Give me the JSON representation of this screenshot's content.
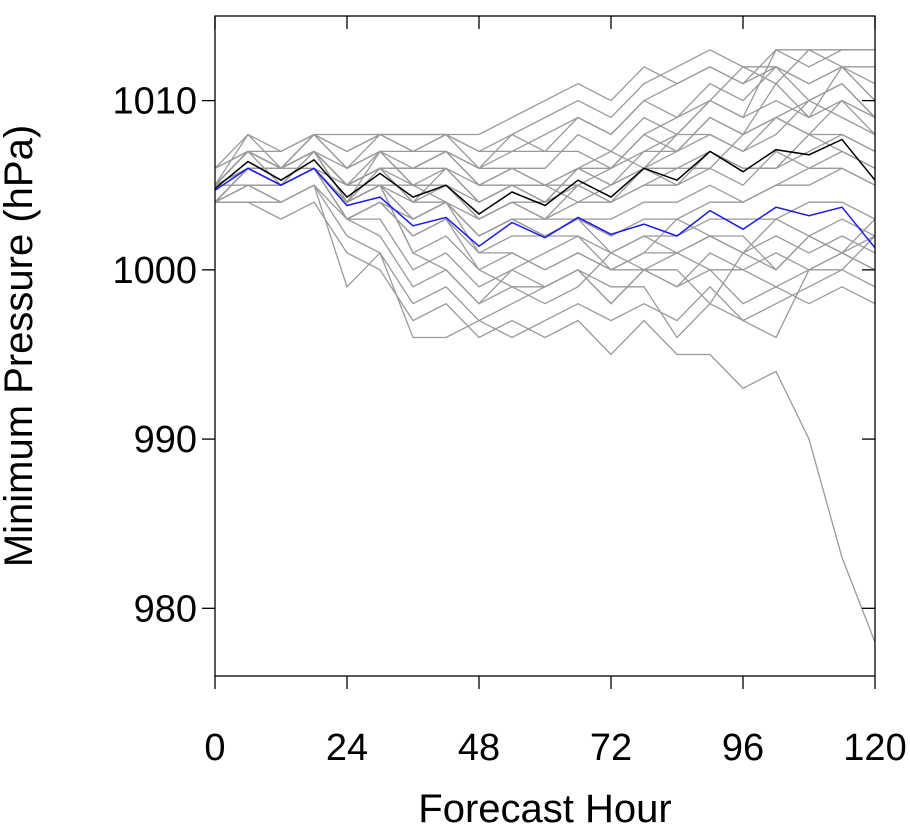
{
  "chart_data": {
    "type": "line",
    "title": "",
    "xlabel": "Forecast Hour",
    "ylabel": "Minimum Pressure (hPa)",
    "xlim": [
      0,
      120
    ],
    "ylim": [
      976,
      1015
    ],
    "xticks": [
      0,
      24,
      48,
      72,
      96,
      120
    ],
    "xtick_labels": [
      "0",
      "24",
      "48",
      "72",
      "96",
      "120"
    ],
    "yticks": [
      980,
      990,
      1000,
      1010
    ],
    "ytick_labels": [
      "980",
      "990",
      "1000",
      "1010"
    ],
    "grid": false,
    "legend": "none",
    "colors": {
      "ensemble": "#999999",
      "highlight_black": "#000000",
      "highlight_blue": "#1a1ae6"
    },
    "x": [
      0,
      6,
      12,
      18,
      24,
      30,
      36,
      42,
      48,
      54,
      60,
      66,
      72,
      78,
      84,
      90,
      96,
      102,
      108,
      114,
      120
    ],
    "series": [
      {
        "role": "ensemble",
        "values": [
          1005,
          1007,
          1006,
          1007,
          1005,
          1006,
          1004,
          1005,
          1003,
          1004,
          1004,
          1005,
          1004,
          1006,
          1007,
          1009,
          1008,
          1011,
          1013,
          1012,
          1011
        ]
      },
      {
        "role": "ensemble",
        "values": [
          1005,
          1007,
          1005,
          1007,
          1004,
          1007,
          1005,
          1006,
          1004,
          1005,
          1004,
          1006,
          1005,
          1007,
          1008,
          1010,
          1009,
          1013,
          1012,
          1013,
          1013
        ]
      },
      {
        "role": "ensemble",
        "values": [
          1004,
          1006,
          1005,
          1006,
          1003,
          1004,
          1003,
          1004,
          1002,
          1003,
          1003,
          1005,
          1006,
          1008,
          1009,
          1010,
          1012,
          1011,
          1009,
          1012,
          1010
        ]
      },
      {
        "role": "ensemble",
        "values": [
          1005,
          1008,
          1006,
          1008,
          1006,
          1008,
          1007,
          1008,
          1006,
          1008,
          1007,
          1009,
          1008,
          1010,
          1011,
          1012,
          1011,
          1012,
          1010,
          1011,
          1009
        ]
      },
      {
        "role": "ensemble",
        "values": [
          1006,
          1007,
          1006,
          1008,
          1006,
          1007,
          1006,
          1007,
          1005,
          1006,
          1006,
          1008,
          1007,
          1009,
          1008,
          1010,
          1009,
          1010,
          1009,
          1010,
          1008
        ]
      },
      {
        "role": "ensemble",
        "values": [
          1005,
          1006,
          1005,
          1007,
          1005,
          1006,
          1006,
          1007,
          1006,
          1007,
          1008,
          1009,
          1008,
          1010,
          1009,
          1011,
          1010,
          1012,
          1011,
          1012,
          1010
        ]
      },
      {
        "role": "ensemble",
        "values": [
          1005,
          1007,
          1006,
          1007,
          1004,
          1005,
          1004,
          1006,
          1005,
          1006,
          1005,
          1006,
          1006,
          1007,
          1007,
          1008,
          1007,
          1009,
          1008,
          1008,
          1007
        ]
      },
      {
        "role": "ensemble",
        "values": [
          1004,
          1006,
          1005,
          1006,
          1004,
          1005,
          1003,
          1004,
          1003,
          1004,
          1003,
          1004,
          1004,
          1005,
          1005,
          1006,
          1005,
          1007,
          1006,
          1007,
          1006
        ]
      },
      {
        "role": "ensemble",
        "values": [
          1005,
          1006,
          1005,
          1006,
          1003,
          1004,
          1002,
          1003,
          1001,
          1002,
          1002,
          1003,
          1002,
          1003,
          1003,
          1004,
          1004,
          1005,
          1005,
          1006,
          1005
        ]
      },
      {
        "role": "ensemble",
        "values": [
          1004,
          1006,
          1005,
          1006,
          1004,
          1005,
          1003,
          1004,
          1002,
          1003,
          1002,
          1003,
          1001,
          1002,
          1001,
          1002,
          1001,
          1003,
          1002,
          1003,
          1002
        ]
      },
      {
        "role": "ensemble",
        "values": [
          1005,
          1006,
          1005,
          1006,
          1003,
          1004,
          1002,
          1003,
          1000,
          1001,
          1000,
          1001,
          1000,
          1001,
          1001,
          1002,
          1001,
          1002,
          1001,
          1002,
          1001
        ]
      },
      {
        "role": "ensemble",
        "values": [
          1004,
          1005,
          1005,
          1006,
          1003,
          1003,
          1000,
          1001,
          999,
          1000,
          999,
          1000,
          998,
          1000,
          999,
          1001,
          1000,
          1001,
          1000,
          1001,
          1000
        ]
      },
      {
        "role": "ensemble",
        "values": [
          1004,
          1005,
          1004,
          1005,
          1003,
          1002,
          999,
          1000,
          998,
          999,
          998,
          999,
          1001,
          1000,
          999,
          1000,
          998,
          999,
          1000,
          1001,
          1000
        ]
      },
      {
        "role": "ensemble",
        "values": [
          1004,
          1004,
          1004,
          1005,
          1002,
          1001,
          998,
          999,
          997,
          998,
          999,
          1000,
          998,
          1000,
          1001,
          1000,
          1000,
          999,
          998,
          999,
          998
        ]
      },
      {
        "role": "ensemble",
        "values": [
          1004,
          1004,
          1003,
          1004,
          1001,
          1000,
          997,
          998,
          996,
          997,
          996,
          997,
          995,
          997,
          995,
          995,
          993,
          994,
          990,
          983,
          978
        ]
      },
      {
        "role": "ensemble",
        "values": [
          1004,
          1005,
          1004,
          1005,
          999,
          1001,
          996,
          996,
          997,
          996,
          997,
          998,
          997,
          998,
          997,
          999,
          997,
          998,
          999,
          1000,
          999
        ]
      },
      {
        "role": "ensemble",
        "values": [
          1005,
          1007,
          1006,
          1008,
          1007,
          1008,
          1008,
          1008,
          1008,
          1009,
          1010,
          1011,
          1010,
          1012,
          1011,
          1012,
          1011,
          1013,
          1013,
          1013,
          1013
        ]
      },
      {
        "role": "ensemble",
        "values": [
          1006,
          1008,
          1007,
          1008,
          1008,
          1008,
          1007,
          1008,
          1007,
          1008,
          1009,
          1010,
          1009,
          1011,
          1012,
          1013,
          1012,
          1012,
          1011,
          1012,
          1012
        ]
      },
      {
        "role": "ensemble",
        "values": [
          1005,
          1007,
          1007,
          1008,
          1007,
          1008,
          1008,
          1008,
          1007,
          1007,
          1007,
          1007,
          1006,
          1008,
          1007,
          1009,
          1008,
          1009,
          1008,
          1010,
          1009
        ]
      },
      {
        "role": "ensemble",
        "values": [
          1005,
          1006,
          1006,
          1007,
          1006,
          1007,
          1007,
          1007,
          1006,
          1006,
          1005,
          1006,
          1007,
          1006,
          1008,
          1008,
          1007,
          1008,
          1010,
          1009,
          1008
        ]
      },
      {
        "role": "ensemble",
        "values": [
          1004,
          1006,
          1006,
          1007,
          1005,
          1006,
          1006,
          1006,
          1004,
          1005,
          1005,
          1004,
          1005,
          1006,
          1005,
          1007,
          1006,
          1006,
          1007,
          1008,
          1007
        ]
      },
      {
        "role": "ensemble",
        "values": [
          1004,
          1006,
          1005,
          1006,
          1005,
          1005,
          1005,
          1005,
          1003,
          1004,
          1003,
          1003,
          1003,
          1004,
          1004,
          1005,
          1004,
          1005,
          1006,
          1006,
          1005
        ]
      },
      {
        "role": "ensemble",
        "values": [
          1005,
          1005,
          1005,
          1006,
          1004,
          1006,
          1005,
          1004,
          1002,
          1003,
          1002,
          1002,
          1001,
          1002,
          1002,
          1003,
          1003,
          1003,
          1004,
          1004,
          1003
        ]
      },
      {
        "role": "ensemble",
        "values": [
          1005,
          1007,
          1006,
          1007,
          1005,
          1006,
          1004,
          1004,
          1001,
          1001,
          1000,
          1001,
          1000,
          1001,
          1003,
          1002,
          1002,
          1000,
          1002,
          1001,
          1002
        ]
      },
      {
        "role": "ensemble",
        "values": [
          1004,
          1006,
          1005,
          1006,
          1004,
          1005,
          1001,
          1002,
          1000,
          999,
          999,
          1000,
          999,
          999,
          996,
          998,
          997,
          996,
          1000,
          1000,
          1002
        ]
      },
      {
        "role": "ensemble",
        "values": [
          1005,
          1006,
          1006,
          1007,
          1004,
          1005,
          1001,
          1000,
          998,
          1000,
          1001,
          1002,
          1000,
          1000,
          1000,
          998,
          1001,
          1000,
          1002,
          1001,
          1003
        ]
      },
      {
        "role": "ensemble",
        "values": [
          1006,
          1007,
          1006,
          1007,
          1005,
          1007,
          1005,
          1005,
          1004,
          1005,
          1005,
          1005,
          1004,
          1005,
          1006,
          1006,
          1008,
          1009,
          1010,
          1011,
          1009
        ]
      },
      {
        "role": "ensemble",
        "values": [
          1005,
          1006,
          1006,
          1006,
          1005,
          1006,
          1006,
          1007,
          1005,
          1005,
          1004,
          1006,
          1005,
          1006,
          1006,
          1007,
          1006,
          1006,
          1008,
          1007,
          1006
        ]
      },
      {
        "role": "highlight_black",
        "values": [
          1004.8,
          1006.4,
          1005.3,
          1006.5,
          1004.3,
          1005.7,
          1004.3,
          1005.0,
          1003.3,
          1004.6,
          1003.8,
          1005.3,
          1004.3,
          1006.0,
          1005.3,
          1007.0,
          1005.8,
          1007.1,
          1006.8,
          1007.7,
          1005.3
        ]
      },
      {
        "role": "highlight_blue",
        "values": [
          1004.7,
          1006.0,
          1005.0,
          1006.0,
          1003.8,
          1004.3,
          1002.6,
          1003.1,
          1001.4,
          1002.8,
          1001.9,
          1003.1,
          1002.1,
          1002.7,
          1002.0,
          1003.5,
          1002.4,
          1003.7,
          1003.2,
          1003.7,
          1001.3
        ]
      }
    ]
  }
}
